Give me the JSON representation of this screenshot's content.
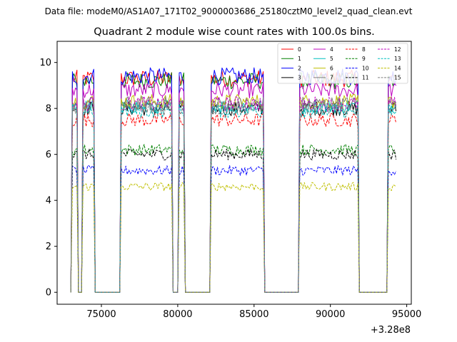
{
  "chart_data": {
    "type": "line",
    "suptitle": "Data file: modeM0/AS1A07_171T02_9000003686_25180cztM0_level2_quad_clean.evt",
    "title": "Quadrant 2 module wise count rates with 100.0s bins.",
    "xlabel": "",
    "ylabel": "",
    "xlim": [
      72100,
      95300
    ],
    "ylim": [
      -0.52,
      10.92
    ],
    "x_offset_label": "+3.28e8",
    "xticks": [
      75000,
      80000,
      85000,
      90000,
      95000
    ],
    "xtick_labels": [
      "75000",
      "80000",
      "85000",
      "90000",
      "95000"
    ],
    "yticks": [
      0,
      2,
      4,
      6,
      8,
      10
    ],
    "ytick_labels": [
      "0",
      "2",
      "4",
      "6",
      "8",
      "10"
    ],
    "legend_position": "top-right",
    "on_intervals": [
      [
        73050,
        73450
      ],
      [
        73750,
        74550
      ],
      [
        76300,
        79650
      ],
      [
        80050,
        80400
      ],
      [
        82150,
        85650
      ],
      [
        87950,
        91850
      ],
      [
        93750,
        94300
      ]
    ],
    "series": [
      {
        "name": "0",
        "level": 9.3,
        "color": "#ff0000",
        "dash": "solid"
      },
      {
        "name": "1",
        "level": 9.2,
        "color": "#008000",
        "dash": "solid"
      },
      {
        "name": "2",
        "level": 9.4,
        "color": "#0000ff",
        "dash": "solid"
      },
      {
        "name": "3",
        "level": 8.0,
        "color": "#000000",
        "dash": "solid"
      },
      {
        "name": "4",
        "level": 8.8,
        "color": "#bf00bf",
        "dash": "solid"
      },
      {
        "name": "5",
        "level": 8.1,
        "color": "#00bfbf",
        "dash": "solid"
      },
      {
        "name": "6",
        "level": 8.3,
        "color": "#bfbf00",
        "dash": "solid"
      },
      {
        "name": "7",
        "level": 8.2,
        "color": "#808080",
        "dash": "solid"
      },
      {
        "name": "8",
        "level": 7.5,
        "color": "#ff0000",
        "dash": "dashed"
      },
      {
        "name": "9",
        "level": 6.2,
        "color": "#008000",
        "dash": "dashed"
      },
      {
        "name": "10",
        "level": 5.3,
        "color": "#0000ff",
        "dash": "dashed"
      },
      {
        "name": "11",
        "level": 6.0,
        "color": "#000000",
        "dash": "dashed"
      },
      {
        "name": "12",
        "level": 8.2,
        "color": "#bf00bf",
        "dash": "dashed"
      },
      {
        "name": "13",
        "level": 7.9,
        "color": "#00bfbf",
        "dash": "dashed"
      },
      {
        "name": "14",
        "level": 4.6,
        "color": "#bfbf00",
        "dash": "dashed"
      },
      {
        "name": "15",
        "level": 8.0,
        "color": "#808080",
        "dash": "dashed"
      }
    ]
  }
}
